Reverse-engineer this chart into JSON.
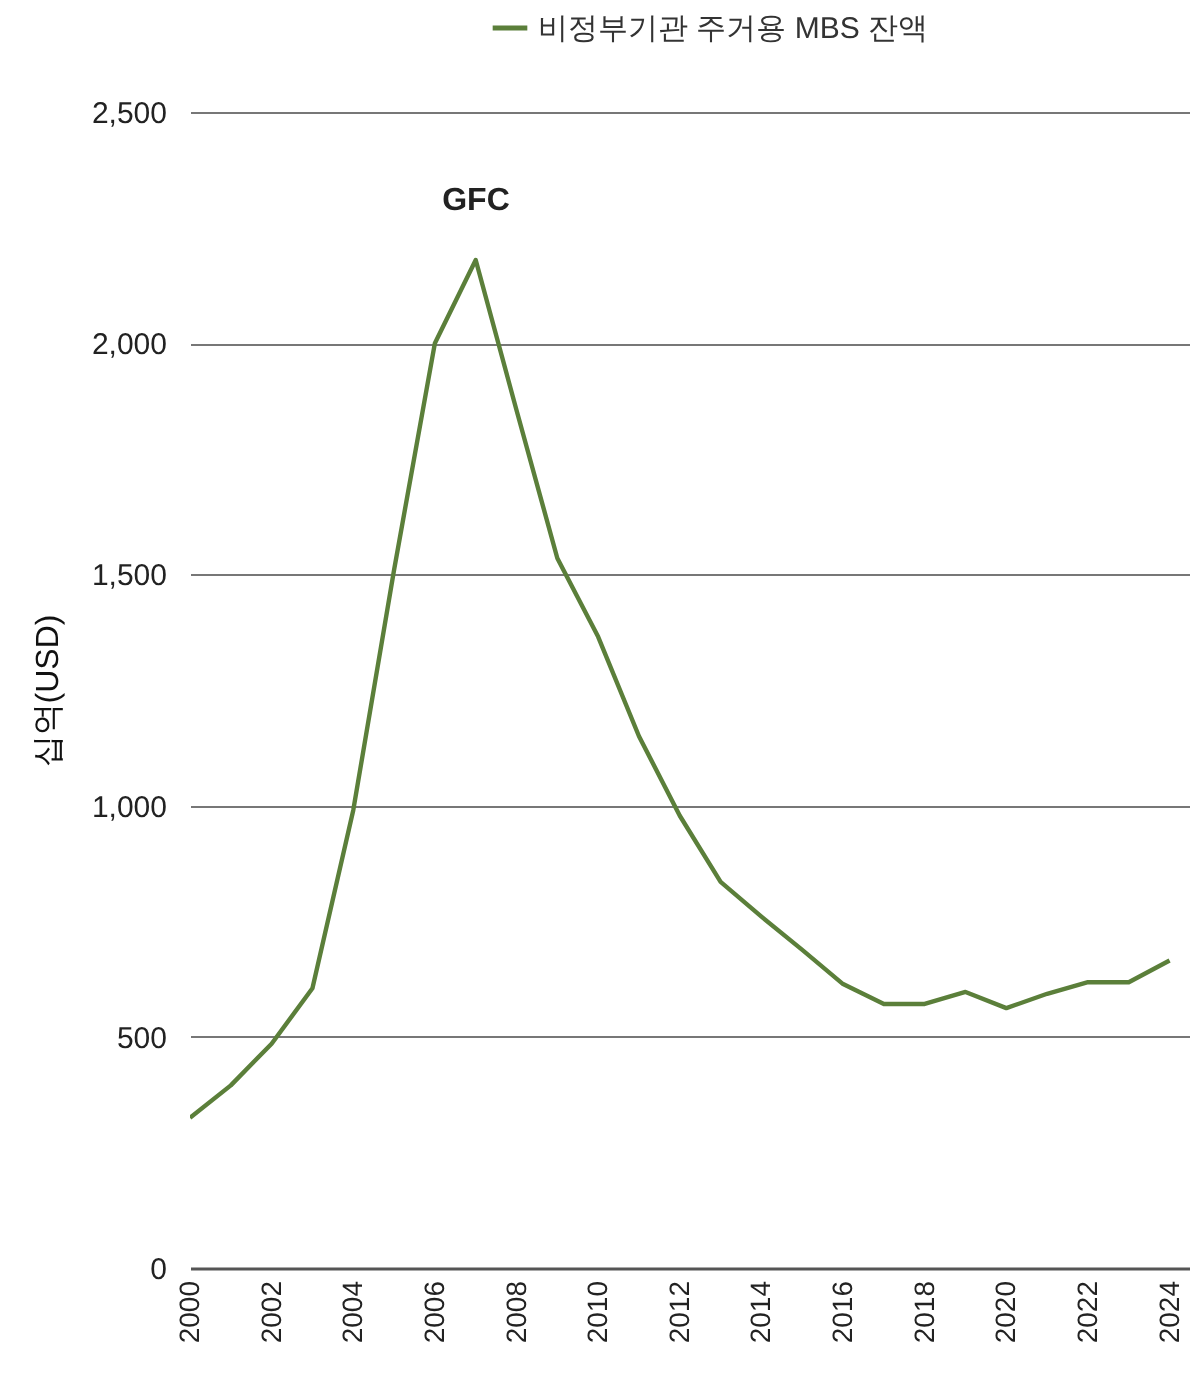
{
  "chart_data": {
    "type": "line",
    "ylabel": "십억(USD)",
    "x": [
      2000,
      2001,
      2002,
      2003,
      2004,
      2005,
      2006,
      2007,
      2008,
      2009,
      2010,
      2011,
      2012,
      2013,
      2014,
      2015,
      2016,
      2017,
      2018,
      2019,
      2020,
      2021,
      2022,
      2023,
      2024
    ],
    "series": [
      {
        "name": "비정부기관 주거용 MBS 잔액",
        "color": "#5b7f3a",
        "values": [
          325,
          395,
          485,
          605,
          990,
          1510,
          2000,
          2180,
          1855,
          1535,
          1365,
          1150,
          978,
          835,
          760,
          688,
          614,
          571,
          571,
          597,
          562,
          593,
          618,
          618,
          665
        ]
      }
    ],
    "xlim": [
      2000,
      2024.5
    ],
    "xticks": [
      2000,
      2002,
      2004,
      2006,
      2008,
      2010,
      2012,
      2014,
      2016,
      2018,
      2020,
      2022,
      2024
    ],
    "ylim": [
      0,
      2500
    ],
    "yticks": [
      {
        "value": 0,
        "label": "0"
      },
      {
        "value": 500,
        "label": "500"
      },
      {
        "value": 1000,
        "label": "1,000"
      },
      {
        "value": 1500,
        "label": "1,500"
      },
      {
        "value": 2000,
        "label": "2,000"
      },
      {
        "value": 2500,
        "label": "2,500"
      }
    ],
    "grid": "y",
    "legend": "top",
    "marker": "none",
    "line_style": "solid",
    "annotations": [
      "GFC"
    ]
  }
}
